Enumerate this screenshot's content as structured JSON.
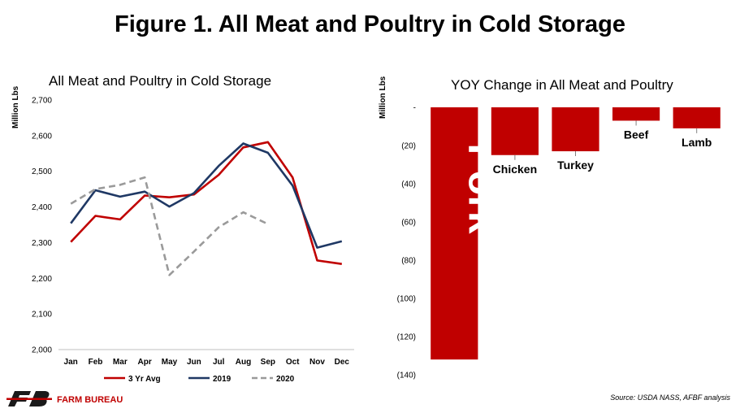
{
  "figure_title": "Figure 1. All Meat and Poultry in Cold Storage",
  "source_text": "Source:  USDA NASS, AFBF analysis",
  "logo_text": "FARM BUREAU",
  "chart_data": [
    {
      "type": "line",
      "title": "All Meat and Poultry in Cold Storage",
      "ylabel": "Million Lbs",
      "categories": [
        "Jan",
        "Feb",
        "Mar",
        "Apr",
        "May",
        "Jun",
        "Jul",
        "Aug",
        "Sep",
        "Oct",
        "Nov",
        "Dec"
      ],
      "ylim": [
        2000,
        2700
      ],
      "yticks": [
        2000,
        2100,
        2200,
        2300,
        2400,
        2500,
        2600,
        2700
      ],
      "ytick_labels": [
        "2,000",
        "2,100",
        "2,200",
        "2,300",
        "2,400",
        "2,500",
        "2,600",
        "2,700"
      ],
      "grid": false,
      "legend": "bottom",
      "series": [
        {
          "name": "3 Yr Avg",
          "color": "#c00000",
          "dash": "solid",
          "values": [
            2302,
            2375,
            2365,
            2432,
            2427,
            2435,
            2490,
            2567,
            2582,
            2483,
            2250,
            2240
          ]
        },
        {
          "name": "2019",
          "color": "#1f3864",
          "dash": "solid",
          "values": [
            2354,
            2447,
            2429,
            2443,
            2401,
            2439,
            2515,
            2578,
            2552,
            2460,
            2286,
            2304
          ]
        },
        {
          "name": "2020",
          "color": "#9a9a9a",
          "dash": "dashed",
          "values": [
            2409,
            2450,
            2462,
            2483,
            2209,
            2275,
            2343,
            2385,
            2352,
            null,
            null,
            null
          ]
        }
      ]
    },
    {
      "type": "bar",
      "title": "YOY Change in All Meat and Poultry",
      "ylabel": "Million Lbs",
      "categories": [
        "Pork",
        "Chicken",
        "Turkey",
        "Beef",
        "Lamb"
      ],
      "values": [
        -132,
        -25,
        -23,
        -7,
        -11
      ],
      "color": "#c00000",
      "ylim": [
        -140,
        0
      ],
      "yticks": [
        0,
        -20,
        -40,
        -60,
        -80,
        -100,
        -120,
        -140
      ],
      "ytick_labels": [
        "-",
        "(20)",
        "(40)",
        "(60)",
        "(80)",
        "(100)",
        "(120)",
        "(140)"
      ],
      "grid": false
    }
  ]
}
